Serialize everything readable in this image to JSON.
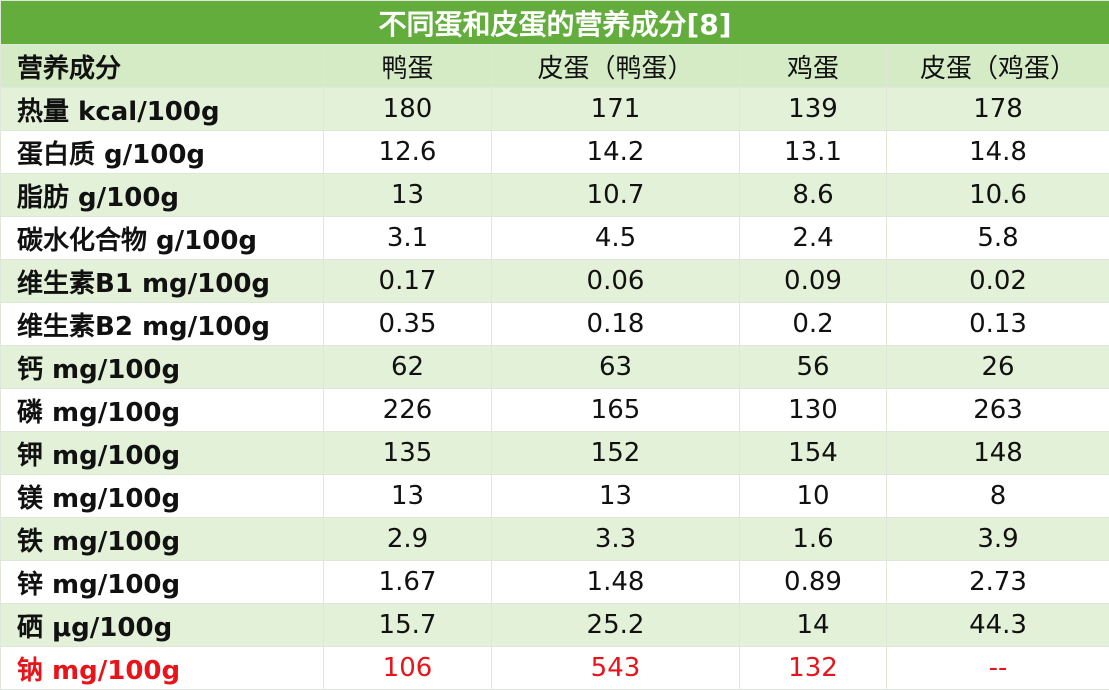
{
  "title": "不同蛋和皮蛋的营养成分[8]",
  "table": {
    "header": [
      "营养成分",
      "鸭蛋",
      "皮蛋（鸭蛋）",
      "鸡蛋",
      "皮蛋（鸡蛋）"
    ],
    "rows": [
      [
        "热量 kcal/100g",
        "180",
        "171",
        "139",
        "178"
      ],
      [
        "蛋白质 g/100g",
        "12.6",
        "14.2",
        "13.1",
        "14.8"
      ],
      [
        "脂肪 g/100g",
        "13",
        "10.7",
        "8.6",
        "10.6"
      ],
      [
        "碳水化合物 g/100g",
        "3.1",
        "4.5",
        "2.4",
        "5.8"
      ],
      [
        "维生素B1 mg/100g",
        "0.17",
        "0.06",
        "0.09",
        "0.02"
      ],
      [
        "维生素B2 mg/100g",
        "0.35",
        "0.18",
        "0.2",
        "0.13"
      ],
      [
        "钙 mg/100g",
        "62",
        "63",
        "56",
        "26"
      ],
      [
        "磷 mg/100g",
        "226",
        "165",
        "130",
        "263"
      ],
      [
        "钾 mg/100g",
        "135",
        "152",
        "154",
        "148"
      ],
      [
        "镁 mg/100g",
        "13",
        "13",
        "10",
        "8"
      ],
      [
        "铁 mg/100g",
        "2.9",
        "3.3",
        "1.6",
        "3.9"
      ],
      [
        "锌 mg/100g",
        "1.67",
        "1.48",
        "0.89",
        "2.73"
      ],
      [
        "硒 μg/100g",
        "15.7",
        "25.2",
        "14",
        "44.3"
      ],
      [
        "钠 mg/100g",
        "106",
        "543",
        "132",
        "--"
      ]
    ]
  }
}
